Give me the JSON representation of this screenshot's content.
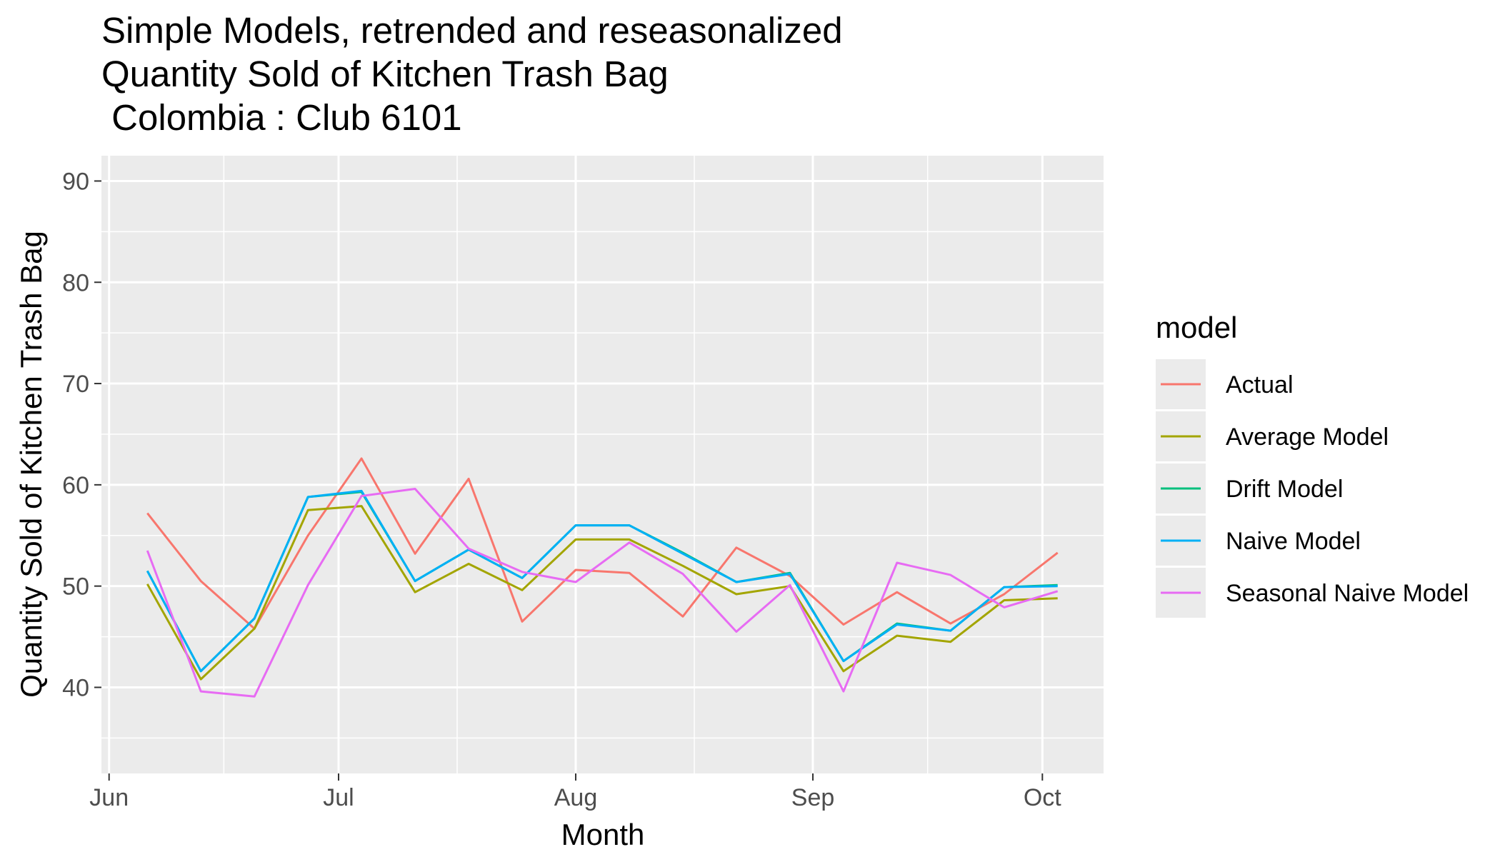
{
  "chart_data": {
    "type": "line",
    "title_lines": [
      "Simple Models, retrended and reseasonalized",
      "Quantity Sold of Kitchen Trash Bag",
      " Colombia : Club 6101"
    ],
    "xlabel": "Month",
    "ylabel": "Quantity Sold of Kitchen Trash Bag",
    "x_ticks": [
      "Jun",
      "Jul",
      "Aug",
      "Sep",
      "Oct"
    ],
    "x_tick_dates": [
      "2020-06-01",
      "2020-07-01",
      "2020-08-01",
      "2020-09-01",
      "2020-10-01"
    ],
    "xlim": [
      "2020-05-31",
      "2020-10-09"
    ],
    "ylim": [
      31.5,
      92.5
    ],
    "y_ticks": [
      40,
      50,
      60,
      70,
      80,
      90
    ],
    "grid": true,
    "legend": {
      "title": "model",
      "position": "right"
    },
    "x": [
      "2020-06-06",
      "2020-06-13",
      "2020-06-20",
      "2020-06-27",
      "2020-07-04",
      "2020-07-11",
      "2020-07-18",
      "2020-07-25",
      "2020-08-01",
      "2020-08-08",
      "2020-08-15",
      "2020-08-22",
      "2020-08-29",
      "2020-09-05",
      "2020-09-12",
      "2020-09-19",
      "2020-09-26",
      "2020-10-03"
    ],
    "series": [
      {
        "name": "Actual",
        "color": "#F8766D",
        "values": [
          57.2,
          50.5,
          45.8,
          55.0,
          62.6,
          53.2,
          60.6,
          46.5,
          51.6,
          51.3,
          47.0,
          53.8,
          51.0,
          46.2,
          49.4,
          46.3,
          49.2,
          53.3
        ]
      },
      {
        "name": "Average Model",
        "color": "#A3A500",
        "values": [
          50.2,
          40.8,
          45.8,
          57.5,
          57.9,
          49.4,
          52.2,
          49.6,
          54.6,
          54.6,
          52.0,
          49.2,
          50.0,
          41.6,
          45.1,
          44.5,
          48.6,
          48.8
        ]
      },
      {
        "name": "Drift Model",
        "color": "#00BF7D",
        "values": [
          51.5,
          41.6,
          46.8,
          58.8,
          59.3,
          50.5,
          53.6,
          50.8,
          56.0,
          56.0,
          53.3,
          50.4,
          51.3,
          42.6,
          46.3,
          45.6,
          49.9,
          50.1
        ]
      },
      {
        "name": "Naive Model",
        "color": "#00B0F6",
        "values": [
          51.5,
          41.6,
          46.8,
          58.8,
          59.4,
          50.5,
          53.6,
          50.8,
          56.0,
          56.0,
          53.2,
          50.4,
          51.2,
          42.6,
          46.2,
          45.6,
          49.9,
          50.0
        ]
      },
      {
        "name": "Seasonal Naive Model",
        "color": "#E76BF3",
        "values": [
          53.5,
          39.6,
          39.1,
          50.1,
          58.9,
          59.6,
          53.7,
          51.4,
          50.4,
          54.3,
          51.2,
          45.5,
          50.1,
          39.6,
          52.3,
          51.1,
          47.9,
          49.5
        ]
      }
    ]
  }
}
